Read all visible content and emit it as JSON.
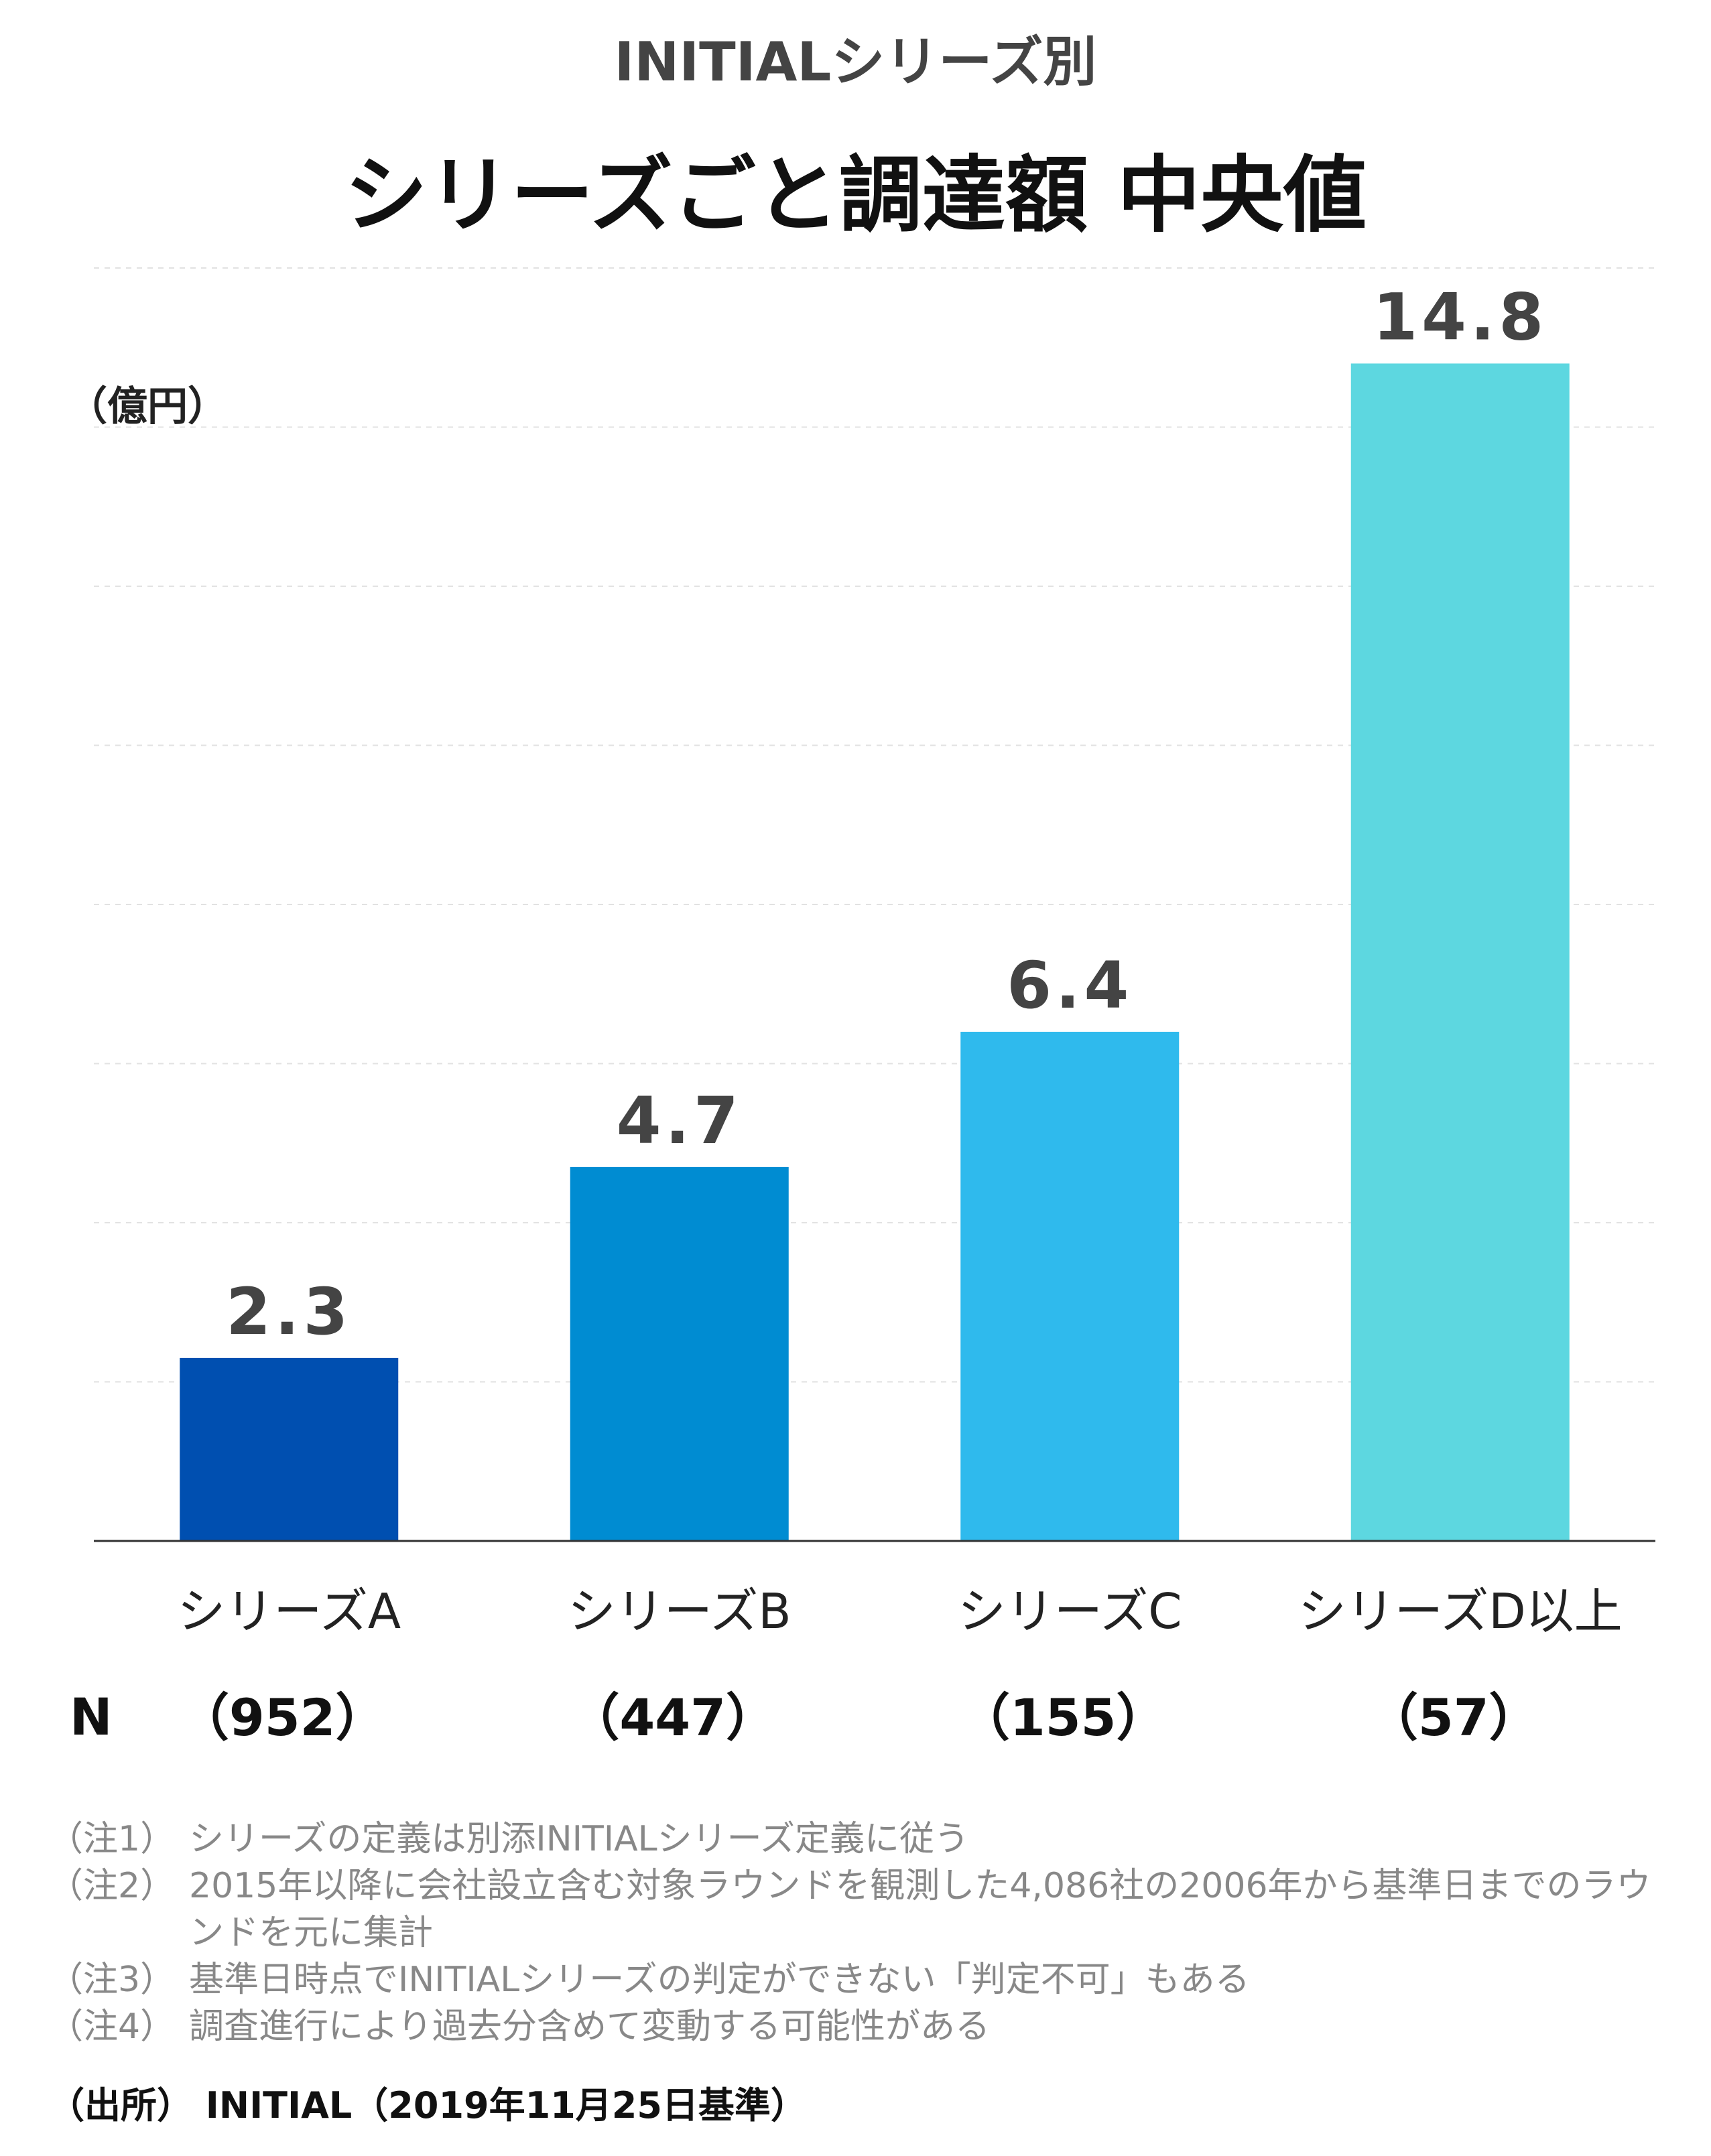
{
  "subtitle": "INITIALシリーズ別",
  "title": "シリーズごと調達額 中央値",
  "unit_label": "（億円）",
  "n_label": "N",
  "chart_data": {
    "type": "bar",
    "title": "シリーズごと調達額 中央値",
    "ylabel": "（億円）",
    "categories": [
      "シリーズA",
      "シリーズB",
      "シリーズC",
      "シリーズD以上"
    ],
    "values": [
      2.3,
      4.7,
      6.4,
      14.8
    ],
    "value_labels": [
      "2.3",
      "4.7",
      "6.4",
      "14.8"
    ],
    "n_values": [
      "（952）",
      "（447）",
      "（155）",
      "（57）"
    ],
    "colors": [
      "#004fb0",
      "#008cd2",
      "#2fbaed",
      "#5dd7e0"
    ],
    "ylim": [
      0,
      16
    ],
    "grid": true,
    "legend": "none"
  },
  "notes": [
    {
      "key": "（注1）",
      "text": "シリーズの定義は別添INITIALシリーズ定義に従う"
    },
    {
      "key": "（注2）",
      "text": "2015年以降に会社設立含む対象ラウンドを観測した4,086社の2006年から基準日までのラウンドを元に集計"
    },
    {
      "key": "（注3）",
      "text": "基準日時点でINITIALシリーズの判定ができない「判定不可」もある"
    },
    {
      "key": "（注4）",
      "text": "調査進行により過去分含めて変動する可能性がある"
    }
  ],
  "source": "（出所） INITIAL（2019年11月25日基準）"
}
